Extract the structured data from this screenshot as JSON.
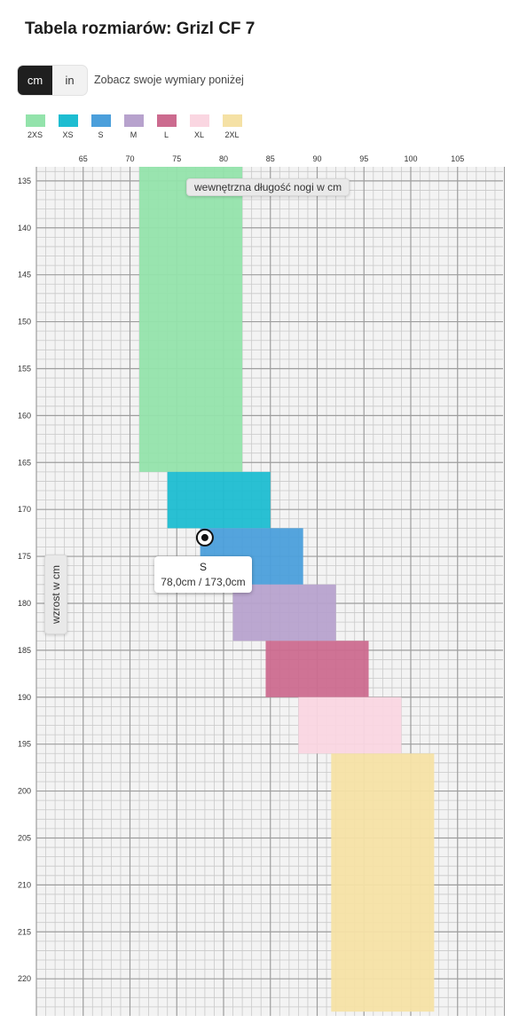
{
  "page": {
    "title": "Tabela rozmiarów: Grizl CF 7"
  },
  "units": {
    "options": [
      "cm",
      "in"
    ],
    "selected": "cm",
    "hint": "Zobacz swoje wymiary poniżej"
  },
  "chart_data": {
    "type": "range-chart",
    "xlabel": "wewnętrzna długość nogi w cm",
    "ylabel": "wzrost w cm",
    "xlim": [
      60,
      110
    ],
    "ylim": [
      133.5,
      223.5
    ],
    "x_ticks": [
      65,
      70,
      75,
      80,
      85,
      90,
      95,
      100,
      105
    ],
    "y_ticks": [
      135,
      140,
      145,
      150,
      155,
      160,
      165,
      170,
      175,
      180,
      185,
      190,
      195,
      200,
      205,
      210,
      215,
      220
    ],
    "sizes": [
      {
        "name": "2XS",
        "color": "#93e3ab",
        "inseam": [
          71,
          82
        ],
        "height": [
          133.5,
          166
        ]
      },
      {
        "name": "XS",
        "color": "#1dbdd1",
        "inseam": [
          74,
          85
        ],
        "height": [
          166,
          172
        ]
      },
      {
        "name": "S",
        "color": "#4b9fdb",
        "inseam": [
          77.5,
          88.5
        ],
        "height": [
          172,
          178
        ]
      },
      {
        "name": "M",
        "color": "#b7a2cd",
        "inseam": [
          81,
          92
        ],
        "height": [
          178,
          184
        ]
      },
      {
        "name": "L",
        "color": "#cc6b8f",
        "inseam": [
          84.5,
          95.5
        ],
        "height": [
          184,
          190
        ]
      },
      {
        "name": "XL",
        "color": "#fad6e1",
        "inseam": [
          88,
          99
        ],
        "height": [
          190,
          196
        ]
      },
      {
        "name": "2XL",
        "color": "#f5e1a5",
        "inseam": [
          91.5,
          102.5
        ],
        "height": [
          196,
          223.5
        ]
      }
    ],
    "marker": {
      "size": "S",
      "inseam": 78.0,
      "height": 173.0,
      "label": "78,0cm / 173,0cm"
    },
    "grid": true
  }
}
